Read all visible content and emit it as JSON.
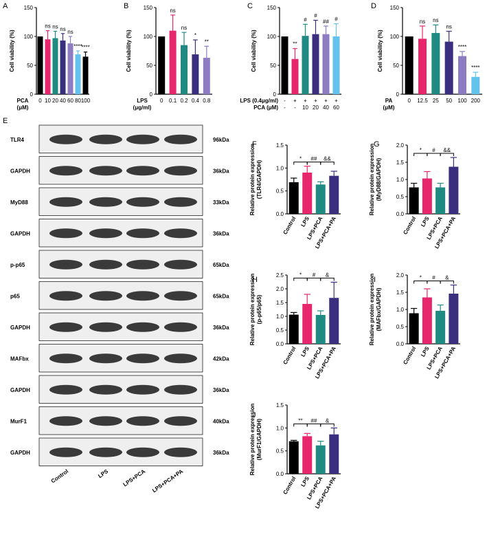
{
  "colors": {
    "black": "#000000",
    "magenta": "#E8266E",
    "teal": "#1F8A82",
    "navy": "#3A2F7E",
    "lavender": "#8E7CC3",
    "skyblue": "#63C2EE",
    "blot_bg": "#efefef",
    "band": "#1a1a1a"
  },
  "blot": {
    "label": "E",
    "rows": [
      {
        "protein": "TLR4",
        "kda": "96kDa"
      },
      {
        "protein": "GAPDH",
        "kda": "36kDa"
      },
      {
        "protein": "MyD88",
        "kda": "33kDa"
      },
      {
        "protein": "GAPDH",
        "kda": "36kDa"
      },
      {
        "protein": "p-p65",
        "kda": "65kDa"
      },
      {
        "protein": "p65",
        "kda": "65kDa"
      },
      {
        "protein": "GAPDH",
        "kda": "36kDa"
      },
      {
        "protein": "MAFbx",
        "kda": "42kDa"
      },
      {
        "protein": "GAPDH",
        "kda": "36kDa"
      },
      {
        "protein": "MurF1",
        "kda": "40kDa"
      },
      {
        "protein": "GAPDH",
        "kda": "36kDa"
      }
    ],
    "lanes": [
      "Control",
      "LPS",
      "LPS+PCA",
      "LPS+PCA+PA"
    ]
  },
  "chart_data": [
    {
      "panel": "A",
      "type": "bar",
      "ylabel": "Cell viability (%)",
      "xlabel": "PCA\n(μM)",
      "categories": [
        "0",
        "10",
        "20",
        "40",
        "60",
        "80",
        "100"
      ],
      "values": [
        100,
        95,
        97,
        93,
        88,
        69,
        65
      ],
      "errors": [
        0,
        15,
        12,
        12,
        12,
        6,
        8
      ],
      "colors": [
        "black",
        "magenta",
        "teal",
        "navy",
        "lavender",
        "skyblue",
        "black"
      ],
      "sig": [
        "",
        "ns",
        "ns",
        "ns",
        "ns",
        "****",
        "****"
      ],
      "ylim": [
        0,
        150
      ],
      "yticks": [
        0,
        50,
        100,
        150
      ]
    },
    {
      "panel": "B",
      "type": "bar",
      "ylabel": "Cell viability (%)",
      "xlabel": "LPS\n(μg/ml)",
      "categories": [
        "0",
        "0.1",
        "0.2",
        "0.4",
        "0.8"
      ],
      "values": [
        100,
        110,
        85,
        69,
        63
      ],
      "errors": [
        0,
        27,
        22,
        25,
        20
      ],
      "colors": [
        "black",
        "magenta",
        "teal",
        "navy",
        "lavender"
      ],
      "sig": [
        "",
        "ns",
        "ns",
        "*",
        "**"
      ],
      "ylim": [
        0,
        150
      ],
      "yticks": [
        0,
        50,
        100,
        150
      ]
    },
    {
      "panel": "C",
      "type": "bar",
      "ylabel": "Cell viability (%)",
      "row_labels": [
        "LPS (0.4μg/ml)",
        "PCA (μM)"
      ],
      "row1": [
        "-",
        "+",
        "+",
        "+",
        "+",
        "+"
      ],
      "row2": [
        "-",
        "-",
        "10",
        "20",
        "40",
        "60"
      ],
      "values": [
        100,
        61,
        101,
        104,
        104,
        100
      ],
      "errors": [
        0,
        18,
        20,
        24,
        14,
        22
      ],
      "colors": [
        "black",
        "magenta",
        "teal",
        "navy",
        "lavender",
        "skyblue"
      ],
      "sig": [
        "",
        "**",
        "#",
        "#",
        "##",
        "#"
      ],
      "ylim": [
        0,
        150
      ],
      "yticks": [
        0,
        50,
        100,
        150
      ]
    },
    {
      "panel": "D",
      "type": "bar",
      "ylabel": "Cell viability (%)",
      "xlabel": "PA\n(μM)",
      "categories": [
        "0",
        "12.5",
        "25",
        "50",
        "100",
        "200"
      ],
      "values": [
        100,
        96,
        106,
        91,
        66,
        30
      ],
      "errors": [
        0,
        22,
        14,
        18,
        8,
        8
      ],
      "colors": [
        "black",
        "magenta",
        "teal",
        "navy",
        "lavender",
        "skyblue"
      ],
      "sig": [
        "",
        "ns",
        "ns",
        "ns",
        "****",
        "****"
      ],
      "ylim": [
        0,
        150
      ],
      "yticks": [
        0,
        50,
        100,
        150
      ]
    },
    {
      "panel": "F",
      "type": "bar",
      "ylabel": "Relative protein expression\n(TLR4/GAPDH)",
      "categories": [
        "Control",
        "LPS",
        "LPS+PCA",
        "LPS+PCA+PA"
      ],
      "values": [
        0.69,
        0.9,
        0.64,
        0.83
      ],
      "errors": [
        0.09,
        0.14,
        0.06,
        0.1
      ],
      "colors": [
        "black",
        "magenta",
        "teal",
        "navy"
      ],
      "brackets": [
        "*",
        "##",
        "&&"
      ],
      "ylim": [
        0,
        1.5
      ],
      "yticks": [
        0.0,
        0.5,
        1.0,
        1.5
      ]
    },
    {
      "panel": "G",
      "type": "bar",
      "ylabel": "Relative protein expression\n(MyD88/GAPDH)",
      "categories": [
        "Control",
        "LPS",
        "LPS+PCA",
        "LPS+PCA+PA"
      ],
      "values": [
        0.77,
        1.03,
        0.77,
        1.37
      ],
      "errors": [
        0.12,
        0.2,
        0.12,
        0.27
      ],
      "colors": [
        "black",
        "magenta",
        "teal",
        "navy"
      ],
      "brackets": [
        "*",
        "#",
        "&&"
      ],
      "ylim": [
        0,
        2.0
      ],
      "yticks": [
        0.0,
        0.5,
        1.0,
        1.5,
        2.0
      ]
    },
    {
      "panel": "H",
      "type": "bar",
      "ylabel": "Relative protein expression\n(p-p65/p65)",
      "categories": [
        "Control",
        "LPS",
        "LPS+PCA",
        "LPS+PCA+PA"
      ],
      "values": [
        1.06,
        1.45,
        1.05,
        1.67
      ],
      "errors": [
        0.08,
        0.35,
        0.15,
        0.57
      ],
      "colors": [
        "black",
        "magenta",
        "teal",
        "navy"
      ],
      "brackets": [
        "*",
        "#",
        "&"
      ],
      "ylim": [
        0,
        2.5
      ],
      "yticks": [
        0.0,
        0.5,
        1.0,
        1.5,
        2.0,
        2.5
      ]
    },
    {
      "panel": "I",
      "type": "bar",
      "ylabel": "Relative protein expression\n(MAFbx/GAPDH)",
      "categories": [
        "Control",
        "LPS",
        "LPS+PCA",
        "LPS+PCA+PA"
      ],
      "values": [
        0.89,
        1.35,
        0.96,
        1.46
      ],
      "errors": [
        0.14,
        0.25,
        0.17,
        0.25
      ],
      "colors": [
        "black",
        "magenta",
        "teal",
        "navy"
      ],
      "brackets": [
        "*",
        "#",
        "&"
      ],
      "ylim": [
        0,
        2.0
      ],
      "yticks": [
        0.0,
        0.5,
        1.0,
        1.5,
        2.0
      ]
    },
    {
      "panel": "J",
      "type": "bar",
      "ylabel": "Relative protein expression\n(MurF1/GAPDH)",
      "categories": [
        "Control",
        "LPS",
        "LPS+PCA",
        "LPS+PCA+PA"
      ],
      "values": [
        0.71,
        0.82,
        0.62,
        0.86
      ],
      "errors": [
        0.02,
        0.06,
        0.09,
        0.14
      ],
      "colors": [
        "black",
        "magenta",
        "teal",
        "navy"
      ],
      "brackets": [
        "**",
        "##",
        "&"
      ],
      "ylim": [
        0,
        1.5
      ],
      "yticks": [
        0.0,
        0.5,
        1.0,
        1.5
      ]
    }
  ]
}
